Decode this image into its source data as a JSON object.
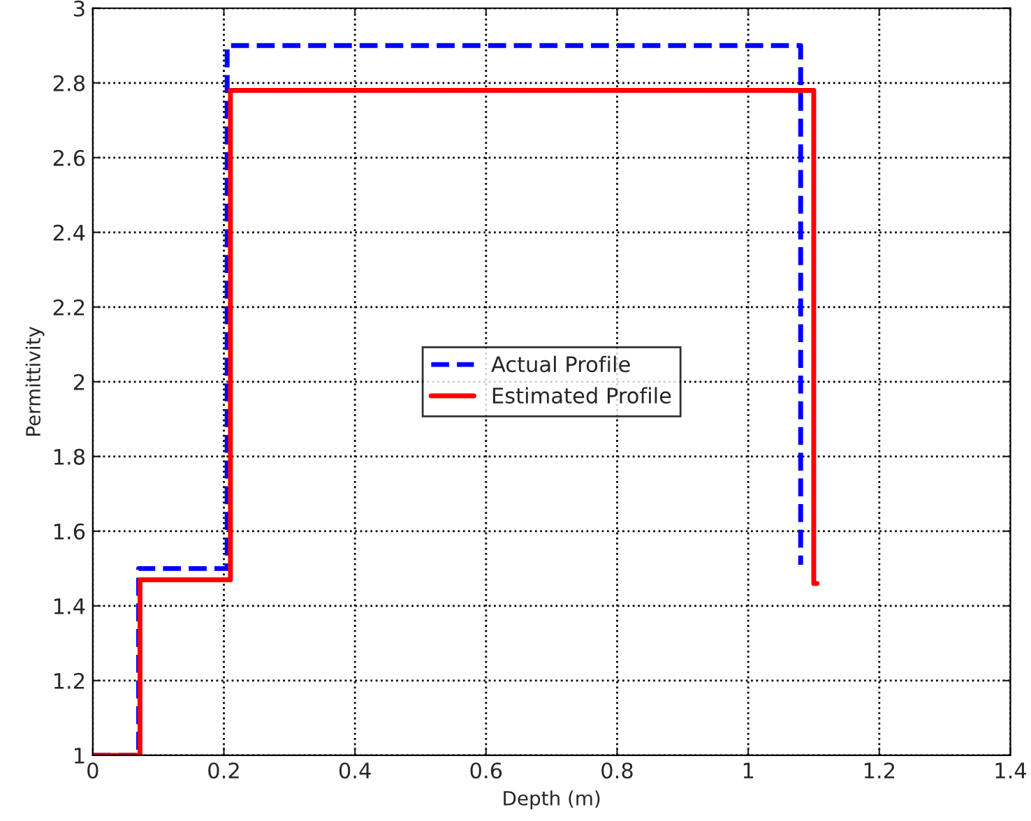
{
  "chart_data": {
    "type": "line",
    "xlabel": "Depth (m)",
    "ylabel": "Permittivity",
    "xlim": [
      0,
      1.4
    ],
    "ylim": [
      1,
      3
    ],
    "xticks": [
      0,
      0.2,
      0.4,
      0.6,
      0.8,
      1,
      1.2,
      1.4
    ],
    "yticks": [
      1,
      1.2,
      1.4,
      1.6,
      1.8,
      2,
      2.2,
      2.4,
      2.6,
      2.8,
      3
    ],
    "grid": true,
    "legend": "center",
    "series": [
      {
        "name": "Actual Profile",
        "color": "#0000ff",
        "line_style": "dashed",
        "x": [
          0,
          0.07,
          0.07,
          0.205,
          0.205,
          1.08,
          1.08
        ],
        "values": [
          1,
          1,
          1.5,
          1.5,
          2.9,
          2.9,
          1.51
        ]
      },
      {
        "name": "Estimated Profile",
        "color": "#ff0000",
        "line_style": "solid",
        "x": [
          0,
          0.072,
          0.072,
          0.21,
          0.21,
          1.1,
          1.1,
          1.105
        ],
        "values": [
          1,
          1,
          1.47,
          1.47,
          2.78,
          2.78,
          1.46,
          1.46
        ]
      }
    ]
  }
}
